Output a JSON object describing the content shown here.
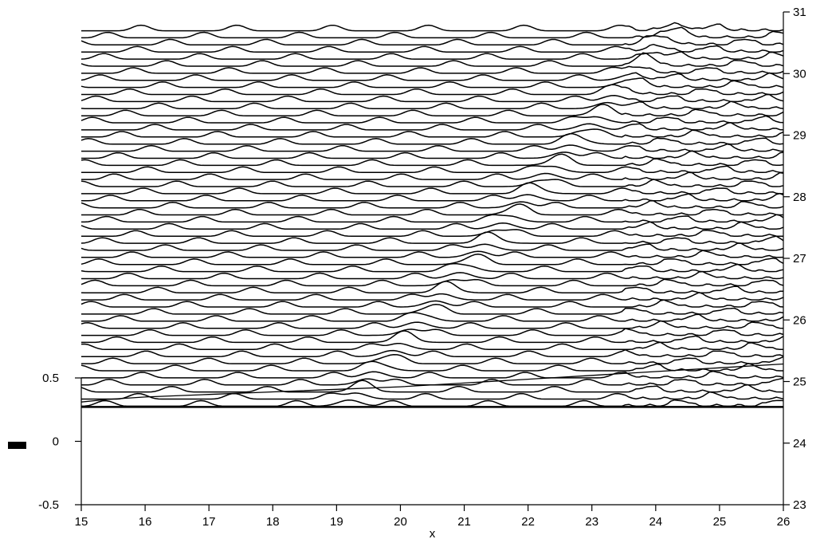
{
  "chart_data": {
    "type": "line",
    "title": "",
    "xlabel": "x",
    "ylabel": "",
    "x_axis": {
      "range": [
        15,
        26
      ],
      "ticks": [
        "15",
        "16",
        "17",
        "18",
        "19",
        "20",
        "21",
        "22",
        "23",
        "24",
        "25",
        "26"
      ]
    },
    "left_axis": {
      "range": [
        -0.5,
        0.5
      ],
      "ticks": [
        "0.5",
        "0",
        "-0.5"
      ]
    },
    "right_axis": {
      "range": [
        23,
        31
      ],
      "ticks": [
        "31",
        "30",
        "29",
        "28",
        "27",
        "26",
        "25",
        "24",
        "23"
      ]
    },
    "legend_marker": "solid black bar",
    "lower_series": {
      "axis": "left",
      "x": [
        15,
        15.4,
        16,
        17,
        18,
        19,
        20,
        21,
        22,
        23,
        24,
        25,
        26
      ],
      "y": [
        0.31,
        0.33,
        0.35,
        0.37,
        0.39,
        0.41,
        0.43,
        0.46,
        0.49,
        0.52,
        0.55,
        0.58,
        0.61
      ]
    },
    "waterfall": {
      "axis": "right",
      "trace_count": 54,
      "y_start": 24.6,
      "y_step": 0.115,
      "x_range": [
        15,
        26
      ],
      "wave_period_x": 1.5,
      "wave_speed_x_per_trace": 0.052,
      "front_x_start": 19.2,
      "front_x_end": 24.3,
      "amplitude": 0.09,
      "grid": false
    }
  }
}
